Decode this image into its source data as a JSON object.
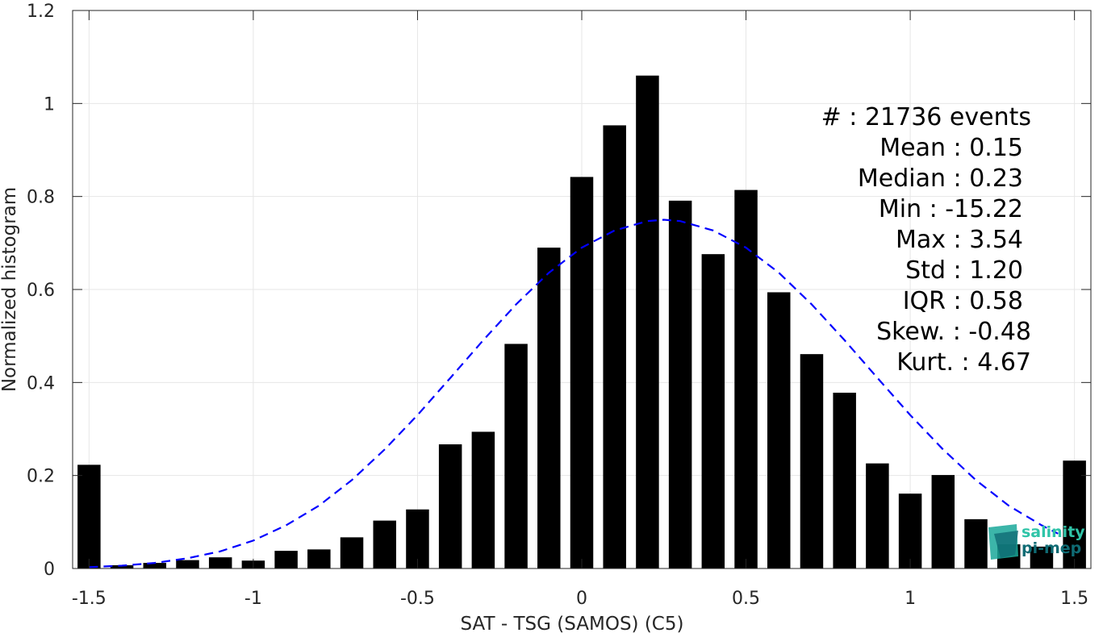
{
  "chart_data": {
    "type": "bar",
    "title": "",
    "xlabel": "SAT - TSG (SAMOS) (C5)",
    "ylabel": "Normalized histogram",
    "xlim": [
      -1.55,
      1.55
    ],
    "ylim": [
      0,
      1.2
    ],
    "grid": true,
    "x_ticks": [
      -1.5,
      -1,
      -0.5,
      0,
      0.5,
      1,
      1.5
    ],
    "x_tick_labels": [
      "-1.5",
      "-1",
      "-0.5",
      "0",
      "0.5",
      "1",
      "1.5"
    ],
    "y_ticks": [
      0,
      0.2,
      0.4,
      0.6,
      0.8,
      1.0,
      1.2
    ],
    "y_tick_labels": [
      "0",
      "0.2",
      "0.4",
      "0.6",
      "0.8",
      "1",
      "1.2"
    ],
    "bar_width": 0.07,
    "x": [
      -1.5,
      -1.4,
      -1.3,
      -1.2,
      -1.1,
      -1.0,
      -0.9,
      -0.8,
      -0.7,
      -0.6,
      -0.5,
      -0.4,
      -0.3,
      -0.2,
      -0.1,
      0.0,
      0.1,
      0.2,
      0.3,
      0.4,
      0.5,
      0.6,
      0.7,
      0.8,
      0.9,
      1.0,
      1.1,
      1.2,
      1.3,
      1.4,
      1.5
    ],
    "values": [
      0.223,
      0.007,
      0.012,
      0.018,
      0.024,
      0.017,
      0.038,
      0.041,
      0.067,
      0.103,
      0.127,
      0.267,
      0.294,
      0.483,
      0.69,
      0.842,
      0.953,
      1.06,
      0.791,
      0.676,
      0.814,
      0.594,
      0.461,
      0.378,
      0.226,
      0.161,
      0.201,
      0.106,
      0.052,
      0.047,
      0.232
    ],
    "bar_color": "#000000",
    "fit_curve": {
      "style": "dashed",
      "color": "#0000ff",
      "x": [
        -1.5,
        -1.4,
        -1.3,
        -1.2,
        -1.1,
        -1.0,
        -0.9,
        -0.8,
        -0.7,
        -0.6,
        -0.5,
        -0.4,
        -0.3,
        -0.2,
        -0.1,
        0.0,
        0.1,
        0.2,
        0.25,
        0.3,
        0.4,
        0.5,
        0.6,
        0.7,
        0.8,
        0.9,
        1.0,
        1.1,
        1.2,
        1.3,
        1.4,
        1.45
      ],
      "y": [
        0.003,
        0.006,
        0.012,
        0.022,
        0.037,
        0.06,
        0.093,
        0.135,
        0.19,
        0.256,
        0.33,
        0.41,
        0.491,
        0.568,
        0.636,
        0.69,
        0.727,
        0.747,
        0.75,
        0.747,
        0.727,
        0.69,
        0.636,
        0.568,
        0.491,
        0.41,
        0.33,
        0.256,
        0.19,
        0.135,
        0.093,
        0.075
      ]
    }
  },
  "stats": {
    "lines": [
      "#  : 21736 events",
      "Mean : 0.15",
      "Median : 0.23",
      "Min : -15.22",
      "Max : 3.54",
      "Std : 1.20",
      "IQR : 0.58",
      "Skew. : -0.48",
      "Kurt. : 4.67"
    ]
  },
  "logo": {
    "line1": "salinity",
    "line2": "pi-mep",
    "colors": [
      "#1aa89a",
      "#0f6b74",
      "#2fc4a8"
    ]
  },
  "colors": {
    "axis": "#262626",
    "grid": "#e6e6e6"
  }
}
